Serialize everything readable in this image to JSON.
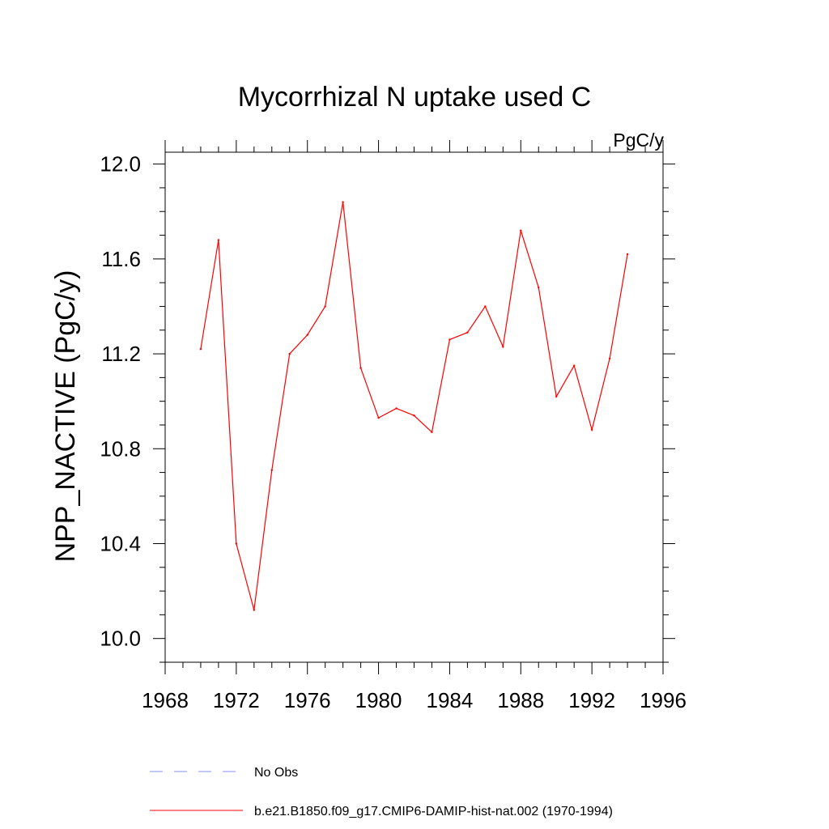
{
  "chart_data": {
    "type": "line",
    "title": "Mycorrhizal N uptake used C",
    "units_label": "PgC/y",
    "xlabel": "",
    "ylabel": "NPP_NACTIVE  (PgC/y)",
    "xlim": [
      1968,
      1996
    ],
    "ylim": [
      9.9,
      12.05
    ],
    "x_major_ticks": [
      1968,
      1972,
      1976,
      1980,
      1984,
      1988,
      1992,
      1996
    ],
    "x_tick_labels": [
      "1968",
      "1972",
      "1976",
      "1980",
      "1984",
      "1988",
      "1992",
      "1996"
    ],
    "x_minor_step": 1,
    "y_major_ticks": [
      10.0,
      10.4,
      10.8,
      11.2,
      11.6,
      12.0
    ],
    "y_tick_labels": [
      "10.0",
      "10.4",
      "10.8",
      "11.2",
      "11.6",
      "12.0"
    ],
    "y_minor_step": 0.1,
    "grid": false,
    "legend_placement": "bottom",
    "series": [
      {
        "name": "b.e21.B1850.f09_g17.CMIP6-DAMIP-hist-nat.002 (1970-1994)",
        "color": "#ff0000",
        "line_style": "solid",
        "x": [
          1970,
          1971,
          1972,
          1973,
          1974,
          1975,
          1976,
          1977,
          1978,
          1979,
          1980,
          1981,
          1982,
          1983,
          1984,
          1985,
          1986,
          1987,
          1988,
          1989,
          1990,
          1991,
          1992,
          1993,
          1994
        ],
        "values": [
          11.22,
          11.68,
          10.4,
          10.12,
          10.71,
          11.2,
          11.28,
          11.4,
          11.84,
          11.14,
          10.93,
          10.97,
          10.94,
          10.87,
          11.26,
          11.29,
          11.4,
          11.23,
          11.72,
          11.48,
          11.02,
          11.15,
          10.88,
          11.18,
          11.62
        ]
      }
    ],
    "legend": [
      {
        "label": "No Obs",
        "color": "#8c8cff",
        "line_style": "dashed"
      },
      {
        "label": "b.e21.B1850.f09_g17.CMIP6-DAMIP-hist-nat.002 (1970-1994)",
        "color": "#ff0000",
        "line_style": "solid"
      }
    ]
  }
}
